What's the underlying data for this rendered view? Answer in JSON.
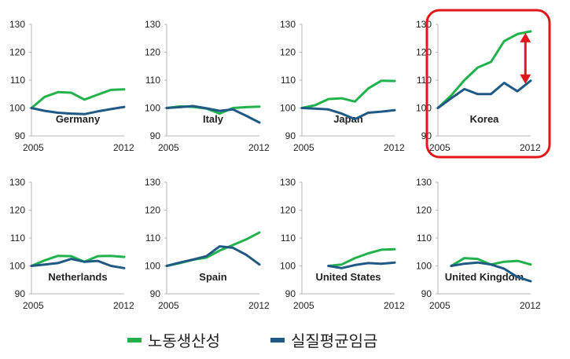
{
  "colors": {
    "productivity": "#22b24c",
    "wage": "#1f5a85",
    "highlight": "#e3161b"
  },
  "legend": {
    "productivity": "노동생산성",
    "wage": "실질평균임금"
  },
  "chart_data": [
    {
      "type": "line",
      "title": "Germany",
      "ylim": [
        90,
        130
      ],
      "yticks": [
        "90",
        "100",
        "110",
        "120",
        "130"
      ],
      "xlim": [
        2005,
        2012
      ],
      "xtick_labels": [
        "2005",
        "2012"
      ],
      "series": [
        {
          "key": "productivity",
          "x": [
            2005,
            2006,
            2007,
            2008,
            2009,
            2010,
            2011,
            2012
          ],
          "values": [
            100,
            104,
            105.7,
            105.5,
            103,
            104.8,
            106.5,
            106.7
          ]
        },
        {
          "key": "wage",
          "x": [
            2005,
            2006,
            2007,
            2008,
            2009,
            2010,
            2011,
            2012
          ],
          "values": [
            100,
            99,
            98.3,
            98,
            97.8,
            98.8,
            99.6,
            100.4
          ]
        }
      ]
    },
    {
      "type": "line",
      "title": "Italy",
      "ylim": [
        90,
        130
      ],
      "yticks": [
        "90",
        "100",
        "110",
        "120",
        "130"
      ],
      "xlim": [
        2005,
        2012
      ],
      "xtick_labels": [
        "2005",
        "2012"
      ],
      "series": [
        {
          "key": "productivity",
          "x": [
            2005,
            2006,
            2007,
            2008,
            2009,
            2010,
            2011,
            2012
          ],
          "values": [
            100,
            100.6,
            100.4,
            99.8,
            98,
            100,
            100.3,
            100.5
          ]
        },
        {
          "key": "wage",
          "x": [
            2005,
            2006,
            2007,
            2008,
            2009,
            2010,
            2011,
            2012
          ],
          "values": [
            100,
            100.3,
            100.7,
            99.9,
            99,
            99.5,
            97.2,
            94.8
          ]
        }
      ]
    },
    {
      "type": "line",
      "title": "Japan",
      "ylim": [
        90,
        130
      ],
      "yticks": [
        "90",
        "100",
        "110",
        "120",
        "130"
      ],
      "xlim": [
        2005,
        2012
      ],
      "xtick_labels": [
        "2005",
        "2012"
      ],
      "series": [
        {
          "key": "productivity",
          "x": [
            2005,
            2006,
            2007,
            2008,
            2009,
            2010,
            2011,
            2012
          ],
          "values": [
            100,
            101,
            103.2,
            103.5,
            102.3,
            107,
            109.8,
            109.7
          ]
        },
        {
          "key": "wage",
          "x": [
            2005,
            2006,
            2007,
            2008,
            2009,
            2010,
            2011,
            2012
          ],
          "values": [
            100,
            99.8,
            99.5,
            98,
            96,
            98.3,
            98.7,
            99.2
          ]
        }
      ]
    },
    {
      "type": "line",
      "title": "Korea",
      "ylim": [
        90,
        130
      ],
      "yticks": [
        "90",
        "100",
        "110",
        "120",
        "130"
      ],
      "xlim": [
        2005,
        2012
      ],
      "xtick_labels": [
        "2005",
        "2012"
      ],
      "highlighted": true,
      "series": [
        {
          "key": "productivity",
          "x": [
            2005,
            2006,
            2007,
            2008,
            2009,
            2010,
            2011,
            2012
          ],
          "values": [
            100,
            104.5,
            110,
            114.5,
            116.5,
            124,
            126.5,
            127.5
          ]
        },
        {
          "key": "wage",
          "x": [
            2005,
            2006,
            2007,
            2008,
            2009,
            2010,
            2011,
            2012
          ],
          "values": [
            100,
            103.5,
            106.8,
            105,
            105,
            109,
            106,
            109.8
          ]
        }
      ]
    },
    {
      "type": "line",
      "title": "Netherlands",
      "ylim": [
        90,
        130
      ],
      "yticks": [
        "90",
        "100",
        "110",
        "120",
        "130"
      ],
      "xlim": [
        2005,
        2012
      ],
      "xtick_labels": [
        "2005",
        "2012"
      ],
      "series": [
        {
          "key": "productivity",
          "x": [
            2005,
            2006,
            2007,
            2008,
            2009,
            2010,
            2011,
            2012
          ],
          "values": [
            100,
            102,
            103.6,
            103.5,
            101.5,
            103.5,
            103.6,
            103.2
          ]
        },
        {
          "key": "wage",
          "x": [
            2005,
            2006,
            2007,
            2008,
            2009,
            2010,
            2011,
            2012
          ],
          "values": [
            100,
            100.5,
            101,
            102.5,
            101.5,
            101.8,
            100,
            99.2
          ]
        }
      ]
    },
    {
      "type": "line",
      "title": "Spain",
      "ylim": [
        90,
        130
      ],
      "yticks": [
        "90",
        "100",
        "110",
        "120",
        "130"
      ],
      "xlim": [
        2005,
        2012
      ],
      "xtick_labels": [
        "2005",
        "2012"
      ],
      "series": [
        {
          "key": "productivity",
          "x": [
            2005,
            2006,
            2007,
            2008,
            2009,
            2010,
            2011,
            2012
          ],
          "values": [
            100,
            101,
            102.2,
            103,
            105.5,
            107.5,
            109.5,
            112
          ]
        },
        {
          "key": "wage",
          "x": [
            2005,
            2006,
            2007,
            2008,
            2009,
            2010,
            2011,
            2012
          ],
          "values": [
            100,
            101.2,
            102.3,
            103.5,
            107,
            106.5,
            104,
            100.5
          ]
        }
      ]
    },
    {
      "type": "line",
      "title": "United States",
      "ylim": [
        90,
        130
      ],
      "yticks": [
        "90",
        "100",
        "110",
        "120",
        "130"
      ],
      "xlim": [
        2005,
        2012
      ],
      "xtick_labels": [
        "2005",
        "2012"
      ],
      "series": [
        {
          "key": "productivity",
          "x": [
            2007,
            2008,
            2009,
            2010,
            2011,
            2012
          ],
          "values": [
            100,
            100.5,
            102.8,
            104.5,
            105.8,
            106
          ]
        },
        {
          "key": "wage",
          "x": [
            2007,
            2008,
            2009,
            2010,
            2011,
            2012
          ],
          "values": [
            100,
            99.2,
            100.3,
            101,
            100.8,
            101.2
          ]
        }
      ]
    },
    {
      "type": "line",
      "title": "United Kingdom",
      "ylim": [
        90,
        130
      ],
      "yticks": [
        "90",
        "100",
        "110",
        "120",
        "130"
      ],
      "xlim": [
        2005,
        2012
      ],
      "xtick_labels": [
        "2005",
        "2012"
      ],
      "series": [
        {
          "key": "productivity",
          "x": [
            2006,
            2007,
            2008,
            2009,
            2010,
            2011,
            2012
          ],
          "values": [
            100,
            102.8,
            102.5,
            100.5,
            101.5,
            101.8,
            100.5
          ]
        },
        {
          "key": "wage",
          "x": [
            2006,
            2007,
            2008,
            2009,
            2010,
            2011,
            2012
          ],
          "values": [
            100,
            100.8,
            101.2,
            100.5,
            99,
            96,
            94.5
          ]
        }
      ]
    }
  ]
}
